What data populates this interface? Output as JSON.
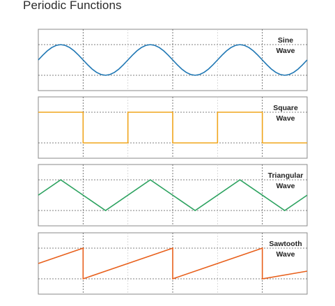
{
  "page": {
    "title": "Periodic Functions"
  },
  "chart_data": [
    {
      "type": "line",
      "label_lines": [
        "Sine",
        "Wave"
      ],
      "color": "#1f77b4",
      "xlim": [
        0,
        6
      ],
      "ylim": [
        -1,
        1
      ],
      "grid": true,
      "x": [
        0.0,
        0.1,
        0.2,
        0.3,
        0.4,
        0.5,
        0.6,
        0.7,
        0.8,
        0.9,
        1.0,
        1.1,
        1.2,
        1.3,
        1.4,
        1.5,
        1.6,
        1.7,
        1.8,
        1.9,
        2.0,
        2.1,
        2.2,
        2.3,
        2.4,
        2.5,
        2.6,
        2.7,
        2.8,
        2.9,
        3.0,
        3.1,
        3.2,
        3.3,
        3.4,
        3.5,
        3.6,
        3.7,
        3.8,
        3.9,
        4.0,
        4.1,
        4.2,
        4.3,
        4.4,
        4.5,
        4.6,
        4.7,
        4.8,
        4.9,
        5.0,
        5.1,
        5.2,
        5.3,
        5.4,
        5.5,
        5.6,
        5.7,
        5.8,
        5.9,
        6.0
      ],
      "y": [
        0.0,
        0.31,
        0.59,
        0.81,
        0.95,
        1.0,
        0.95,
        0.81,
        0.59,
        0.31,
        0.0,
        -0.31,
        -0.59,
        -0.81,
        -0.95,
        -1.0,
        -0.95,
        -0.81,
        -0.59,
        -0.31,
        0.0,
        0.31,
        0.59,
        0.81,
        0.95,
        1.0,
        0.95,
        0.81,
        0.59,
        0.31,
        0.0,
        -0.31,
        -0.59,
        -0.81,
        -0.95,
        -1.0,
        -0.95,
        -0.81,
        -0.59,
        -0.31,
        0.0,
        0.31,
        0.59,
        0.81,
        0.95,
        1.0,
        0.95,
        0.81,
        0.59,
        0.31,
        0.0,
        -0.31,
        -0.59,
        -0.81,
        -0.95,
        -1.0,
        -0.95,
        -0.81,
        -0.59,
        -0.31,
        0.0
      ]
    },
    {
      "type": "line",
      "label_lines": [
        "Square",
        "Wave"
      ],
      "color": "#f0a51c",
      "xlim": [
        0,
        6
      ],
      "ylim": [
        -1,
        1
      ],
      "grid": true,
      "x": [
        0,
        1,
        1,
        2,
        2,
        3,
        3,
        4,
        4,
        5,
        5,
        6
      ],
      "y": [
        1,
        1,
        -1,
        -1,
        1,
        1,
        -1,
        -1,
        1,
        1,
        -1,
        -1
      ]
    },
    {
      "type": "line",
      "label_lines": [
        "Triangular",
        "Wave"
      ],
      "color": "#2ca25f",
      "xlim": [
        0,
        6
      ],
      "ylim": [
        -1,
        1
      ],
      "grid": true,
      "x": [
        0,
        0.5,
        1.5,
        2.5,
        3.5,
        4.5,
        5.5,
        6.0
      ],
      "y": [
        0,
        1,
        -1,
        1,
        -1,
        1,
        -1,
        0
      ]
    },
    {
      "type": "line",
      "label_lines": [
        "Sawtooth",
        "Wave"
      ],
      "color": "#e8601c",
      "xlim": [
        0,
        6
      ],
      "ylim": [
        -1,
        1
      ],
      "grid": true,
      "x": [
        0,
        1,
        1,
        3,
        3,
        5,
        5,
        6
      ],
      "y": [
        0,
        1,
        -1,
        1,
        -1,
        1,
        -1,
        -0.5
      ]
    }
  ]
}
